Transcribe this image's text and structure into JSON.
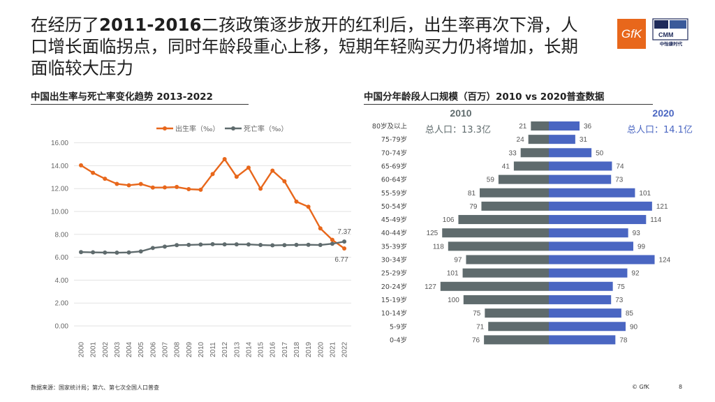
{
  "headline": {
    "part1": "在经历了",
    "bold": "2011-2016",
    "part2": "二孩政策逐步放开的红利后，出生率再次下滑，人口增长面临拐点，同时年龄段重心上移，短期年轻购买力仍将增加，长期面临较大压力"
  },
  "logos": {
    "gfk_text": "GfK",
    "cmm_text": "CMM",
    "cmm_name": "中怡康时代"
  },
  "left_title": "中国出生率与死亡率变化趋势 2013-2022",
  "right_title": "中国分年龄段人口规模（百万）2010 vs 2020普查数据",
  "footer": {
    "source": "数据来源：国家统计局；第六、第七次全国人口普查",
    "copyright": "© GfK",
    "page": "8"
  },
  "colors": {
    "orange": "#e8671b",
    "gray": "#5f6b6d",
    "blue": "#4a66c2",
    "year_2010": "#5f6b6d",
    "year_2020": "#4a66c2"
  },
  "chart_data": [
    {
      "type": "line",
      "title": "中国出生率与死亡率变化趋势 2013-2022",
      "x": [
        "2000",
        "2001",
        "2002",
        "2003",
        "2004",
        "2005",
        "2006",
        "2007",
        "2008",
        "2009",
        "2010",
        "2011",
        "2012",
        "2013",
        "2014",
        "2015",
        "2016",
        "2017",
        "2018",
        "2019",
        "2020",
        "2021",
        "2022"
      ],
      "series": [
        {
          "name": "出生率（‰）",
          "color": "#e8671b",
          "values": [
            14.03,
            13.38,
            12.86,
            12.41,
            12.29,
            12.4,
            12.09,
            12.1,
            12.14,
            11.95,
            11.9,
            13.27,
            14.57,
            13.03,
            13.83,
            11.99,
            13.57,
            12.64,
            10.86,
            10.41,
            8.52,
            7.52,
            6.77
          ]
        },
        {
          "name": "死亡率（‰）",
          "color": "#5f6b6d",
          "values": [
            6.45,
            6.43,
            6.41,
            6.4,
            6.42,
            6.51,
            6.81,
            6.93,
            7.06,
            7.08,
            7.11,
            7.14,
            7.13,
            7.13,
            7.12,
            7.07,
            7.04,
            7.06,
            7.08,
            7.09,
            7.07,
            7.18,
            7.37
          ]
        }
      ],
      "yticks": [
        "16.00",
        "14.00",
        "12.00",
        "10.00",
        "8.00",
        "6.00",
        "4.00",
        "2.00",
        "0.00"
      ],
      "ylim": [
        0,
        16
      ],
      "data_labels": {
        "death_end": "7.37",
        "birth_end": "6.77"
      },
      "legend": "top",
      "grid": "horizontal"
    },
    {
      "type": "bar",
      "orientation": "horizontal-butterfly",
      "title": "中国分年龄段人口规模（百万）2010 vs 2020普查数据",
      "categories": [
        "80岁及以上",
        "75-79岁",
        "70-74岁",
        "65-69岁",
        "60-64岁",
        "55-59岁",
        "50-54岁",
        "45-49岁",
        "40-44岁",
        "35-39岁",
        "30-34岁",
        "25-29岁",
        "20-24岁",
        "15-19岁",
        "10-14岁",
        "5-9岁",
        "0-4岁"
      ],
      "series": [
        {
          "name": "2010",
          "color": "#5f6b6d",
          "values": [
            21,
            24,
            33,
            41,
            59,
            81,
            79,
            106,
            125,
            118,
            97,
            101,
            127,
            100,
            75,
            71,
            76
          ]
        },
        {
          "name": "2020",
          "color": "#4a66c2",
          "values": [
            36,
            31,
            50,
            74,
            73,
            101,
            121,
            114,
            93,
            99,
            124,
            92,
            75,
            73,
            85,
            90,
            78
          ]
        }
      ],
      "totals": {
        "t2010": "总人口：13.3亿",
        "t2020": "总人口：14.1亿"
      },
      "year_labels": {
        "y2010": "2010",
        "y2020": "2020"
      }
    }
  ]
}
